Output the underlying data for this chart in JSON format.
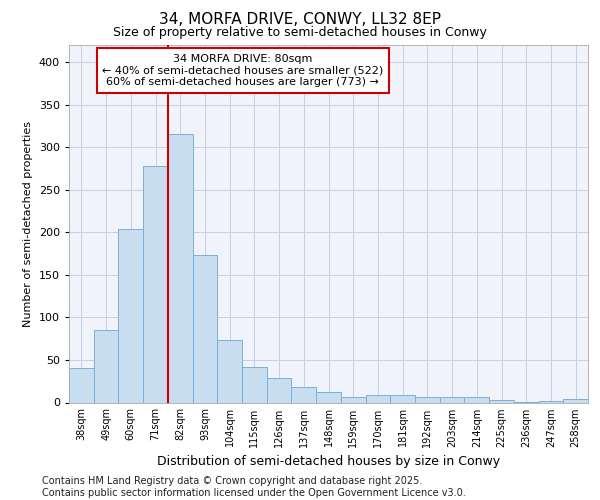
{
  "title1": "34, MORFA DRIVE, CONWY, LL32 8EP",
  "title2": "Size of property relative to semi-detached houses in Conwy",
  "xlabel": "Distribution of semi-detached houses by size in Conwy",
  "ylabel": "Number of semi-detached properties",
  "categories": [
    "38sqm",
    "49sqm",
    "60sqm",
    "71sqm",
    "82sqm",
    "93sqm",
    "104sqm",
    "115sqm",
    "126sqm",
    "137sqm",
    "148sqm",
    "159sqm",
    "170sqm",
    "181sqm",
    "192sqm",
    "203sqm",
    "214sqm",
    "225sqm",
    "236sqm",
    "247sqm",
    "258sqm"
  ],
  "values": [
    40,
    85,
    204,
    278,
    315,
    173,
    74,
    42,
    29,
    18,
    12,
    7,
    9,
    9,
    6,
    6,
    7,
    3,
    1,
    2,
    4
  ],
  "bar_color": "#c9ddf0",
  "bar_edge_color": "#7ab0d8",
  "grid_color": "#c5cfe0",
  "background_color": "#f0f4fa",
  "annotation_box_text": "34 MORFA DRIVE: 80sqm\n← 40% of semi-detached houses are smaller (522)\n60% of semi-detached houses are larger (773) →",
  "property_line_color": "#cc0000",
  "annotation_box_color": "#cc0000",
  "ylim": [
    0,
    420
  ],
  "yticks": [
    0,
    50,
    100,
    150,
    200,
    250,
    300,
    350,
    400
  ],
  "footer": "Contains HM Land Registry data © Crown copyright and database right 2025.\nContains public sector information licensed under the Open Government Licence v3.0.",
  "title1_fontsize": 11,
  "title2_fontsize": 9,
  "ylabel_fontsize": 8,
  "xlabel_fontsize": 9,
  "tick_fontsize": 7,
  "ytick_fontsize": 8,
  "footer_fontsize": 7,
  "annot_fontsize": 8
}
